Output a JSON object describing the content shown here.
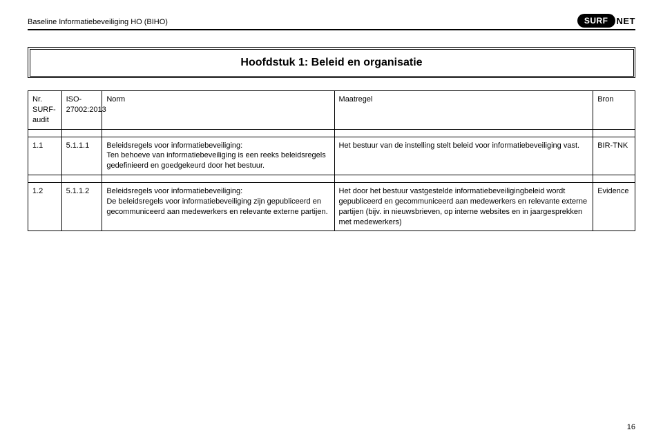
{
  "header": {
    "left": "Baseline Informatiebeveiliging HO (BIHO)",
    "logo_left": "SURF",
    "logo_right": "NET"
  },
  "chapter_title": "Hoofdstuk 1: Beleid en organisatie",
  "table": {
    "headers": {
      "nr": "Nr. SURF-audit",
      "iso": "ISO-27002:2013",
      "norm": "Norm",
      "maatregel": "Maatregel",
      "bron": "Bron"
    },
    "rows": [
      {
        "nr": "1.1",
        "iso": "5.1.1.1",
        "norm_title": "Beleidsregels voor informatiebeveiliging:",
        "norm_body": "Ten behoeve van informatiebeveiliging is een reeks beleidsregels gedefinieerd en goedgekeurd door het bestuur.",
        "maatregel": "Het bestuur van de instelling stelt beleid voor informatiebeveiliging vast.",
        "bron": "BIR-TNK"
      },
      {
        "nr": "1.2",
        "iso": "5.1.1.2",
        "norm_title": "Beleidsregels voor informatiebeveiliging:",
        "norm_body": "De beleidsregels voor informatiebeveiliging zijn gepubliceerd en gecommuniceerd aan medewerkers en relevante externe partijen.",
        "maatregel": "Het door het bestuur vastgestelde informatiebeveiligingbeleid wordt gepubliceerd en gecommuniceerd aan medewerkers en relevante externe partijen (bijv. in nieuwsbrieven, op interne websites en in jaargesprekken met medewerkers)",
        "bron": "Evidence"
      }
    ]
  },
  "page_number": "16"
}
